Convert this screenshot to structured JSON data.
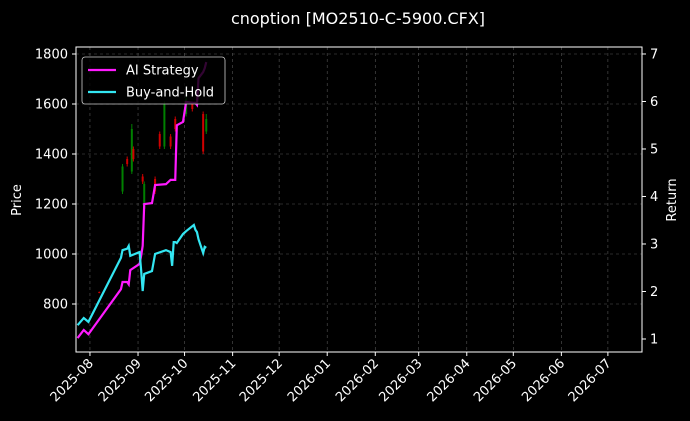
{
  "chart_data": {
    "type": "candlestick",
    "title": "cnoption [MO2510-C-5900.CFX]",
    "ylabel": "Price",
    "y2label": "Return",
    "xlim": [
      "2025-07-23",
      "2026-07-23"
    ],
    "ylim": [
      608,
      1828
    ],
    "y2lim": [
      0.726,
      7.147
    ],
    "xticks": [
      {
        "value": "2025-08-01",
        "label": "2025-08"
      },
      {
        "value": "2025-09-01",
        "label": "2025-09"
      },
      {
        "value": "2025-10-01",
        "label": "2025-10"
      },
      {
        "value": "2025-11-01",
        "label": "2025-11"
      },
      {
        "value": "2025-12-01",
        "label": "2025-12"
      },
      {
        "value": "2026-01-01",
        "label": "2026-01"
      },
      {
        "value": "2026-02-01",
        "label": "2026-02"
      },
      {
        "value": "2026-03-01",
        "label": "2026-03"
      },
      {
        "value": "2026-04-01",
        "label": "2026-04"
      },
      {
        "value": "2026-05-01",
        "label": "2026-05"
      },
      {
        "value": "2026-06-01",
        "label": "2026-06"
      },
      {
        "value": "2026-07-01",
        "label": "2026-07"
      }
    ],
    "yticks": [
      800,
      1000,
      1200,
      1400,
      1600,
      1800
    ],
    "y2ticks": [
      1,
      2,
      3,
      4,
      5,
      6,
      7
    ],
    "grid": true,
    "legend": "upper left",
    "up_color": "#008000",
    "down_color": "#d00000",
    "candles": {
      "x": [
        "2025-08-07",
        "2025-08-22",
        "2025-08-25",
        "2025-08-28",
        "2025-08-29",
        "2025-09-04",
        "2025-09-05",
        "2025-09-12",
        "2025-09-15",
        "2025-09-18",
        "2025-09-22",
        "2025-09-25",
        "2025-10-02",
        "2025-10-06",
        "2025-10-13",
        "2025-10-15"
      ],
      "open": [
        848,
        1250,
        1380,
        1330,
        1420,
        1310,
        1180,
        1300,
        1480,
        1430,
        1470,
        1540,
        1560,
        1600,
        1560,
        1490
      ],
      "high": [
        850,
        1360,
        1390,
        1520,
        1430,
        1320,
        1290,
        1310,
        1490,
        1610,
        1480,
        1550,
        1630,
        1610,
        1570,
        1560
      ],
      "low": [
        843,
        1240,
        1350,
        1320,
        1370,
        1280,
        1170,
        1240,
        1420,
        1420,
        1420,
        1490,
        1550,
        1570,
        1400,
        1480
      ],
      "close": [
        845,
        1350,
        1360,
        1500,
        1380,
        1290,
        1280,
        1250,
        1430,
        1600,
        1430,
        1500,
        1620,
        1580,
        1410,
        1540
      ]
    },
    "x": [
      "2025-07-24",
      "2025-07-28",
      "2025-07-31",
      "2025-08-21",
      "2025-08-22",
      "2025-08-25",
      "2025-08-26",
      "2025-08-27",
      "2025-09-02",
      "2025-09-03",
      "2025-09-04",
      "2025-09-05",
      "2025-09-10",
      "2025-09-12",
      "2025-09-19",
      "2025-09-22",
      "2025-09-23",
      "2025-09-24",
      "2025-09-25",
      "2025-09-26",
      "2025-09-30",
      "2025-10-02",
      "2025-10-07",
      "2025-10-08",
      "2025-10-09",
      "2025-10-10",
      "2025-10-13",
      "2025-10-14",
      "2025-10-15"
    ],
    "series": [
      {
        "name": "AI Strategy",
        "color": "#ff1aff",
        "axis": "y2",
        "values": [
          1.02,
          1.19,
          1.1,
          2.05,
          2.2,
          2.2,
          2.15,
          2.45,
          2.58,
          2.75,
          2.96,
          3.84,
          3.86,
          4.24,
          4.26,
          4.35,
          4.35,
          4.35,
          4.35,
          5.5,
          5.57,
          5.99,
          5.97,
          5.97,
          5.93,
          6.49,
          6.62,
          6.7,
          6.83
        ]
      },
      {
        "name": "Buy-and-Hold",
        "color": "#33e6f2",
        "axis": "y2",
        "values": [
          1.29,
          1.44,
          1.36,
          2.71,
          2.87,
          2.9,
          2.96,
          2.75,
          2.83,
          2.45,
          2.01,
          2.37,
          2.43,
          2.79,
          2.87,
          2.83,
          2.54,
          3.04,
          3.04,
          3.02,
          3.21,
          3.27,
          3.4,
          3.3,
          3.25,
          3.1,
          2.81,
          2.94,
          2.92
        ]
      }
    ]
  }
}
